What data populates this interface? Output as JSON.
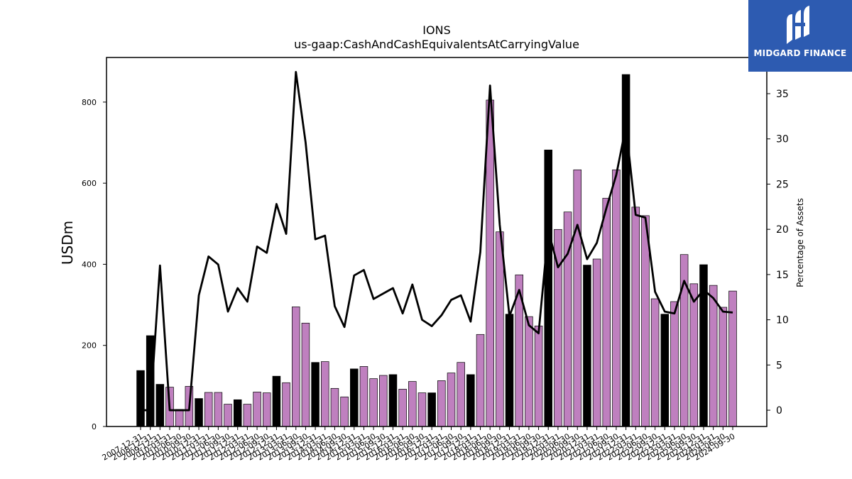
{
  "logo": {
    "text": "MIDGARD FINANCE",
    "bg_color": "#2d5bb1"
  },
  "chart_data": {
    "type": "bar",
    "title": "IONS",
    "subtitle": "us-gaap:CashAndCashEquivalentsAtCarryingValue",
    "ylabel": "USDm",
    "y2label": "Percentage of Assets",
    "ylim": [
      0,
      910
    ],
    "y2lim": [
      -1.8,
      39
    ],
    "yticks": [
      0,
      200,
      400,
      600,
      800
    ],
    "y2ticks": [
      0,
      5,
      10,
      15,
      20,
      25,
      30,
      35
    ],
    "colors": {
      "annual": "#000000",
      "quarterly": "#bf80bf",
      "line": "#000000"
    },
    "categories": [
      "2007-12-31",
      "2008-12-31",
      "2009-12-31",
      "2010-03-31",
      "2010-06-30",
      "2010-09-30",
      "2010-12-31",
      "2011-03-31",
      "2011-06-30",
      "2011-09-30",
      "2011-12-31",
      "2012-03-31",
      "2012-06-30",
      "2012-09-30",
      "2012-12-31",
      "2013-03-31",
      "2013-06-30",
      "2013-09-30",
      "2013-12-31",
      "2014-03-31",
      "2014-06-30",
      "2014-09-30",
      "2014-12-31",
      "2015-03-31",
      "2015-06-30",
      "2015-09-30",
      "2015-12-31",
      "2016-03-31",
      "2016-06-30",
      "2016-09-30",
      "2016-12-31",
      "2017-03-31",
      "2017-06-30",
      "2017-09-30",
      "2017-12-31",
      "2018-03-31",
      "2018-06-30",
      "2018-09-30",
      "2018-12-31",
      "2019-03-31",
      "2019-06-30",
      "2019-09-30",
      "2019-12-31",
      "2020-03-31",
      "2020-06-30",
      "2020-09-30",
      "2020-12-31",
      "2021-03-31",
      "2021-06-30",
      "2021-09-30",
      "2021-12-31",
      "2022-03-31",
      "2022-06-30",
      "2022-09-30",
      "2022-12-31",
      "2023-03-31",
      "2023-06-30",
      "2023-09-30",
      "2023-12-31",
      "2024-03-31",
      "2024-06-30",
      "2024-09-30"
    ],
    "period_type": [
      "annual",
      "annual",
      "annual",
      "quarterly",
      "quarterly",
      "quarterly",
      "annual",
      "quarterly",
      "quarterly",
      "quarterly",
      "annual",
      "quarterly",
      "quarterly",
      "quarterly",
      "annual",
      "quarterly",
      "quarterly",
      "quarterly",
      "annual",
      "quarterly",
      "quarterly",
      "quarterly",
      "annual",
      "quarterly",
      "quarterly",
      "quarterly",
      "annual",
      "quarterly",
      "quarterly",
      "quarterly",
      "annual",
      "quarterly",
      "quarterly",
      "quarterly",
      "annual",
      "quarterly",
      "quarterly",
      "quarterly",
      "annual",
      "quarterly",
      "quarterly",
      "quarterly",
      "annual",
      "quarterly",
      "quarterly",
      "quarterly",
      "annual",
      "quarterly",
      "quarterly",
      "quarterly",
      "annual",
      "quarterly",
      "quarterly",
      "quarterly",
      "annual",
      "quarterly",
      "quarterly",
      "quarterly",
      "annual",
      "quarterly",
      "quarterly",
      "quarterly"
    ],
    "values": [
      138,
      224,
      104,
      97,
      42,
      99,
      69,
      84,
      84,
      55,
      66,
      55,
      85,
      83,
      124,
      108,
      295,
      255,
      158,
      160,
      94,
      73,
      142,
      148,
      118,
      126,
      128,
      92,
      111,
      83,
      83,
      113,
      132,
      158,
      128,
      227,
      805,
      480,
      277,
      374,
      271,
      248,
      682,
      486,
      529,
      633,
      398,
      413,
      563,
      633,
      868,
      541,
      520,
      315,
      277,
      308,
      424,
      352,
      399,
      348,
      294,
      334
    ],
    "series": [
      {
        "name": "Percentage of Assets",
        "values": [
          0.0,
          0.0,
          16.0,
          0.0,
          0.0,
          0.0,
          12.7,
          17.0,
          16.1,
          10.9,
          13.5,
          12.0,
          18.1,
          17.4,
          22.8,
          19.5,
          37.4,
          29.6,
          18.9,
          19.3,
          11.5,
          9.2,
          14.9,
          15.5,
          12.3,
          12.9,
          13.5,
          10.7,
          13.9,
          10.0,
          9.3,
          10.5,
          12.2,
          12.7,
          9.8,
          17.5,
          35.9,
          20.5,
          10.4,
          13.3,
          9.4,
          8.5,
          19.9,
          15.8,
          17.3,
          20.5,
          16.7,
          18.5,
          22.4,
          26.0,
          31.4,
          21.6,
          21.3,
          13.1,
          10.9,
          10.7,
          14.3,
          12.0,
          13.3,
          12.4,
          10.9,
          10.8
        ]
      }
    ]
  }
}
